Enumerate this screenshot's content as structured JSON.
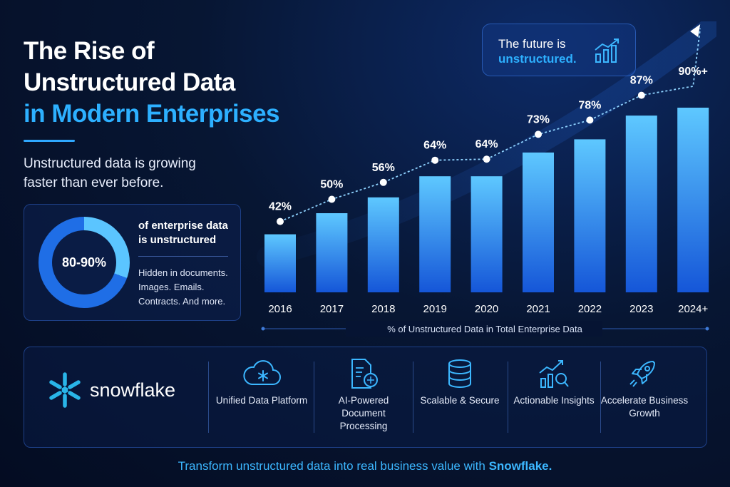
{
  "title": {
    "line1": "The Rise of",
    "line2": "Unstructured Data",
    "line3": "in Modern Enterprises"
  },
  "subtitle": "Unstructured data is growing faster than ever before.",
  "stat": {
    "value": "80-90%",
    "headline": "of enterprise data is unstructured",
    "description": "Hidden in documents. Images. Emails. Contracts. And more."
  },
  "callout": {
    "line1": "The future is",
    "line2": "unstructured."
  },
  "colors": {
    "accent": "#2db0ff",
    "bar_top": "#5ec8ff",
    "bar_bottom": "#1556d8",
    "background": "#061433"
  },
  "chart_data": {
    "type": "bar",
    "categories": [
      "2016",
      "2017",
      "2018",
      "2019",
      "2020",
      "2021",
      "2022",
      "2023",
      "2024+"
    ],
    "values": [
      42,
      50,
      56,
      64,
      64,
      73,
      78,
      87,
      90
    ],
    "data_labels": [
      "42%",
      "50%",
      "56%",
      "64%",
      "64%",
      "73%",
      "78%",
      "87%",
      "90%+"
    ],
    "trend_line": [
      42,
      50,
      56,
      64,
      64,
      73,
      78,
      87,
      90
    ],
    "xlabel": "% of Unstructured Data in Total Enterprise Data",
    "ylabel": "",
    "ylim": [
      20,
      100
    ],
    "grid": false,
    "legend": "none"
  },
  "brand": {
    "name": "snowflake",
    "icon": "snowflake-icon"
  },
  "features": [
    {
      "icon": "cloud-snowflake-icon",
      "label": "Unified Data Platform"
    },
    {
      "icon": "ai-document-icon",
      "label": "AI-Powered Document Processing"
    },
    {
      "icon": "database-icon",
      "label": "Scalable & Secure"
    },
    {
      "icon": "insights-chart-icon",
      "label": "Actionable Insights"
    },
    {
      "icon": "rocket-icon",
      "label": "Accelerate Business Growth"
    }
  ],
  "footer": {
    "text": "Transform unstructured data into real business value with",
    "brand": "Snowflake."
  }
}
